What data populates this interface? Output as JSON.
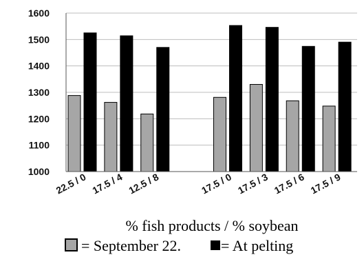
{
  "chart_data": {
    "type": "bar",
    "categories": [
      "22.5 / 0",
      "17.5 / 4",
      "12.5 / 8",
      "",
      "17.5 / 0",
      "17.5 / 3",
      "17.5 / 6",
      "17.5 / 9"
    ],
    "series": [
      {
        "name": "September 22.",
        "color": "#a6a6a6",
        "values": [
          1288,
          1262,
          1218,
          null,
          1281,
          1330,
          1268,
          1248
        ]
      },
      {
        "name": "At pelting",
        "color": "#000000",
        "values": [
          1525,
          1514,
          1470,
          null,
          1553,
          1546,
          1474,
          1490
        ]
      }
    ],
    "xlabel": "% fish products / % soybean",
    "ylabel": "",
    "ylim": [
      1000,
      1600
    ],
    "yticks": [
      1000,
      1100,
      1200,
      1300,
      1400,
      1500,
      1600
    ],
    "grid": true,
    "legend": {
      "placement": "bottom",
      "entries": [
        {
          "text": "= September 22.",
          "swatch": "gray-box"
        },
        {
          "text": "= At pelting",
          "swatch": "black-box"
        }
      ]
    }
  }
}
